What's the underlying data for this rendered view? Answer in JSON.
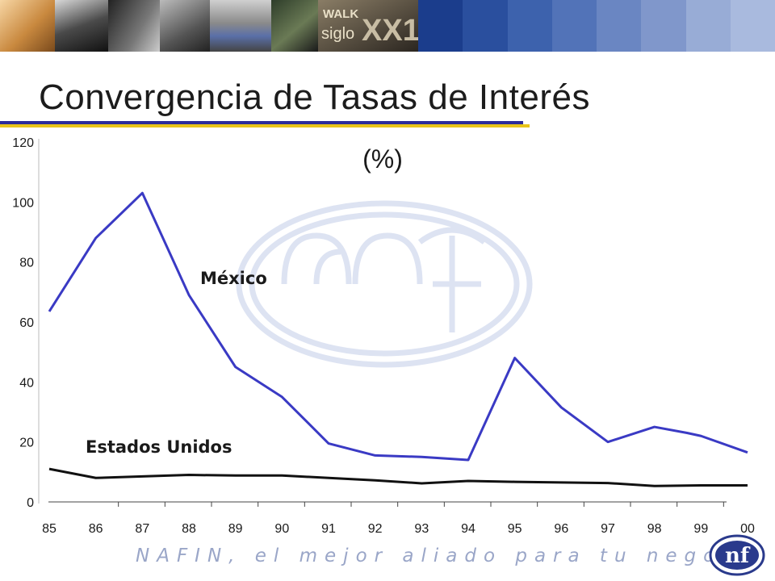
{
  "slide": {
    "title": "Convergencia de Tasas de Interés",
    "footer": "NAFIN, el mejor aliado para tu negocio",
    "logo_text": "nf",
    "banner_text": [
      "WALK",
      "siglo",
      "XX1"
    ]
  },
  "colors": {
    "mexico_line": "#3a3ac4",
    "usa_line": "#111111",
    "title_rule_blue": "#2b2b9a",
    "title_rule_gold": "#e8c41a",
    "watermark": "#dde3f2",
    "banner_blues": [
      "#1b3d8c",
      "#2a4f9e",
      "#3d62ad",
      "#5273b8",
      "#6a86c2",
      "#8097cb",
      "#98acd6",
      "#a9bade"
    ]
  },
  "chart_data": {
    "type": "line",
    "unit_label": "(%)",
    "categories": [
      "85",
      "86",
      "87",
      "88",
      "89",
      "90",
      "91",
      "92",
      "93",
      "94",
      "95",
      "96",
      "97",
      "98",
      "99",
      "00"
    ],
    "ylim": [
      0,
      120
    ],
    "yticks": [
      0,
      20,
      40,
      60,
      80,
      100,
      120
    ],
    "series": [
      {
        "name": "México",
        "x": [
          85,
          86,
          87,
          88,
          89,
          90,
          91,
          92,
          93,
          94,
          95,
          96,
          97,
          98,
          98.7,
          99,
          100
        ],
        "values": [
          63.5,
          88,
          103,
          69,
          45,
          35,
          19.5,
          15.5,
          15,
          14,
          48,
          31.5,
          20,
          25,
          23,
          22,
          16.5
        ]
      },
      {
        "name": "Estados Unidos",
        "x": [
          85,
          86,
          87,
          88,
          89,
          90,
          91,
          92,
          93,
          94,
          95,
          96,
          97,
          98,
          99,
          100
        ],
        "values": [
          11,
          8,
          8.5,
          9,
          8.8,
          8.8,
          8,
          7.2,
          6.2,
          7,
          6.7,
          6.5,
          6.3,
          5.3,
          5.5,
          5.5
        ]
      }
    ]
  }
}
